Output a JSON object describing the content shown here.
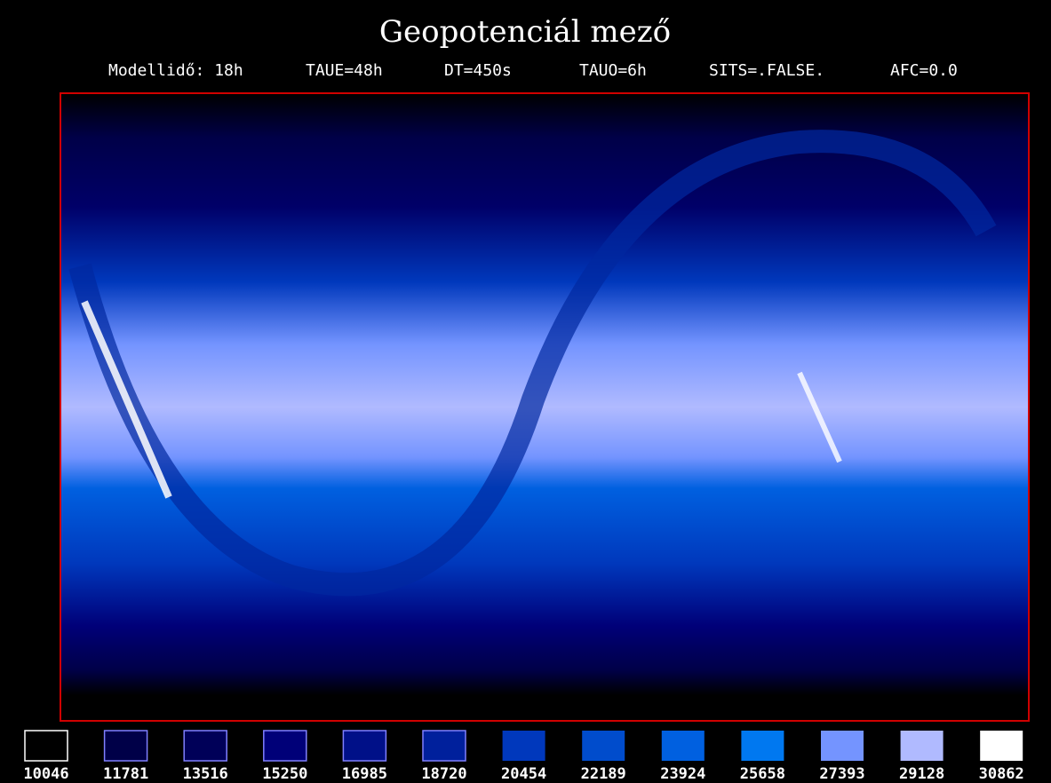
{
  "header": {
    "title": "Geopotenciál mező",
    "params": [
      "Modellidő: 18h",
      "TAUE=48h",
      "DT=450s",
      "TAUO=6h",
      "SITS=.FALSE.",
      "AFC=0.0"
    ]
  },
  "legend": {
    "items": [
      {
        "value": 10046,
        "color": "#000000"
      },
      {
        "value": 11781,
        "color": "#000048"
      },
      {
        "value": 13516,
        "color": "#000058"
      },
      {
        "value": 15250,
        "color": "#000078"
      },
      {
        "value": 16985,
        "color": "#001088"
      },
      {
        "value": 18720,
        "color": "#00209c"
      },
      {
        "value": 20454,
        "color": "#0038bc"
      },
      {
        "value": 22189,
        "color": "#004ccc"
      },
      {
        "value": 23924,
        "color": "#0060e0"
      },
      {
        "value": 25658,
        "color": "#0078f0"
      },
      {
        "value": 27393,
        "color": "#7494ff"
      },
      {
        "value": 29128,
        "color": "#b0baff"
      },
      {
        "value": 30862,
        "color": "#ffffff"
      }
    ]
  }
}
